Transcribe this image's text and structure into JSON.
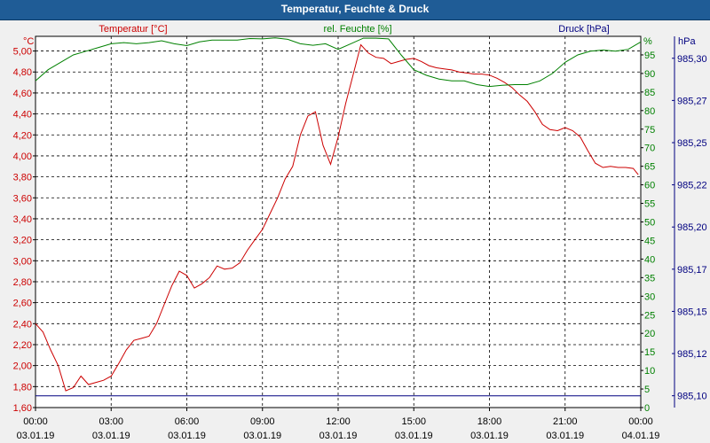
{
  "window": {
    "title": "Temperatur, Feuchte & Druck"
  },
  "colors": {
    "temperature": "#cc0000",
    "humidity": "#008000",
    "pressure": "#000080",
    "grid": "#000000",
    "plot_bg": "#ffffff"
  },
  "chart_data": {
    "type": "line",
    "title": "Temperatur, Feuchte & Druck",
    "grid": true,
    "x_ticks": [
      {
        "time": "00:00",
        "date": "03.01.19"
      },
      {
        "time": "03:00",
        "date": "03.01.19"
      },
      {
        "time": "06:00",
        "date": "03.01.19"
      },
      {
        "time": "09:00",
        "date": "03.01.19"
      },
      {
        "time": "12:00",
        "date": "03.01.19"
      },
      {
        "time": "15:00",
        "date": "03.01.19"
      },
      {
        "time": "18:00",
        "date": "03.01.19"
      },
      {
        "time": "21:00",
        "date": "03.01.19"
      },
      {
        "time": "00:00",
        "date": "04.01.19"
      }
    ],
    "axes": {
      "temperature": {
        "label": "Temperatur [°C]",
        "unit": "°C",
        "range": [
          1.6,
          5.14
        ],
        "ticks": [
          "1,60",
          "1,80",
          "2,00",
          "2,20",
          "2,40",
          "2,60",
          "2,80",
          "3,00",
          "3,20",
          "3,40",
          "3,60",
          "3,80",
          "4,00",
          "4,20",
          "4,40",
          "4,60",
          "4,80",
          "5,00"
        ],
        "tick_values": [
          1.6,
          1.8,
          2.0,
          2.2,
          2.4,
          2.6,
          2.8,
          3.0,
          3.2,
          3.4,
          3.6,
          3.8,
          4.0,
          4.2,
          4.4,
          4.6,
          4.8,
          5.0
        ]
      },
      "humidity": {
        "label": "rel. Feuchte [%]",
        "unit": "%",
        "range": [
          0,
          100
        ],
        "ticks": [
          "0",
          "5",
          "10",
          "15",
          "20",
          "25",
          "30",
          "35",
          "40",
          "45",
          "50",
          "55",
          "60",
          "65",
          "70",
          "75",
          "80",
          "85",
          "90",
          "95"
        ],
        "tick_values": [
          0,
          5,
          10,
          15,
          20,
          25,
          30,
          35,
          40,
          45,
          50,
          55,
          60,
          65,
          70,
          75,
          80,
          85,
          90,
          95
        ]
      },
      "pressure": {
        "label": "Druck [hPa]",
        "unit": "hPa",
        "range": [
          985.093,
          985.313
        ],
        "ticks": [
          "985,10",
          "985,12",
          "985,15",
          "985,17",
          "985,20",
          "985,22",
          "985,25",
          "985,27",
          "985,30"
        ],
        "tick_values": [
          985.1,
          985.125,
          985.15,
          985.175,
          985.2,
          985.225,
          985.25,
          985.275,
          985.3
        ]
      }
    },
    "series": [
      {
        "name": "Temperatur [°C]",
        "axis": "temperature",
        "x": [
          0,
          0.3,
          0.6,
          0.9,
          1.2,
          1.5,
          1.8,
          2.1,
          2.4,
          2.7,
          3.0,
          3.3,
          3.6,
          3.9,
          4.2,
          4.5,
          4.8,
          5.1,
          5.4,
          5.7,
          6.0,
          6.3,
          6.6,
          6.9,
          7.2,
          7.5,
          7.8,
          8.1,
          8.4,
          8.7,
          9.0,
          9.3,
          9.6,
          9.9,
          10.2,
          10.5,
          10.8,
          11.1,
          11.4,
          11.7,
          12.0,
          12.3,
          12.6,
          12.9,
          13.2,
          13.5,
          13.8,
          14.1,
          14.4,
          14.7,
          15.0,
          15.3,
          15.6,
          15.9,
          16.2,
          16.5,
          16.8,
          17.1,
          17.4,
          17.7,
          18.0,
          18.3,
          18.6,
          18.9,
          19.2,
          19.5,
          19.8,
          20.1,
          20.4,
          20.7,
          21.0,
          21.3,
          21.6,
          21.9,
          22.2,
          22.5,
          22.8,
          23.1,
          23.4,
          23.7,
          23.9
        ],
        "values": [
          2.4,
          2.32,
          2.15,
          2.0,
          1.76,
          1.79,
          1.9,
          1.82,
          1.84,
          1.86,
          1.9,
          2.02,
          2.15,
          2.24,
          2.26,
          2.28,
          2.4,
          2.58,
          2.76,
          2.9,
          2.86,
          2.74,
          2.78,
          2.84,
          2.95,
          2.92,
          2.93,
          2.98,
          3.1,
          3.2,
          3.3,
          3.45,
          3.6,
          3.78,
          3.9,
          4.2,
          4.38,
          4.42,
          4.1,
          3.92,
          4.18,
          4.5,
          4.78,
          5.06,
          4.98,
          4.94,
          4.93,
          4.88,
          4.9,
          4.92,
          4.93,
          4.9,
          4.86,
          4.84,
          4.83,
          4.82,
          4.8,
          4.79,
          4.78,
          4.78,
          4.77,
          4.74,
          4.7,
          4.65,
          4.58,
          4.52,
          4.42,
          4.3,
          4.25,
          4.24,
          4.27,
          4.24,
          4.18,
          4.05,
          3.93,
          3.89,
          3.9,
          3.89,
          3.89,
          3.88,
          3.82
        ]
      },
      {
        "name": "rel. Feuchte [%]",
        "axis": "humidity",
        "x": [
          0,
          0.5,
          1.0,
          1.5,
          2.0,
          2.5,
          3.0,
          3.5,
          4.0,
          4.5,
          5.0,
          5.5,
          6.0,
          6.5,
          7.0,
          7.5,
          8.0,
          8.5,
          9.0,
          9.5,
          10.0,
          10.5,
          11.0,
          11.5,
          12.0,
          12.5,
          13.0,
          13.5,
          14.0,
          14.5,
          15.0,
          15.5,
          16.0,
          16.5,
          17.0,
          17.5,
          18.0,
          18.5,
          19.0,
          19.5,
          20.0,
          20.5,
          21.0,
          21.5,
          22.0,
          22.5,
          23.0,
          23.5,
          24.0
        ],
        "values": [
          88,
          91,
          93,
          95,
          96,
          97,
          98,
          98.3,
          98,
          98.3,
          98.8,
          98,
          97.5,
          98.5,
          99,
          99,
          99,
          99.4,
          99.3,
          99.6,
          99.2,
          98,
          97.6,
          98,
          96.5,
          98,
          99.5,
          99.5,
          99.3,
          95,
          91,
          89.5,
          88.5,
          88,
          88,
          87,
          86.5,
          86.8,
          87,
          87,
          88,
          90,
          93,
          95,
          96,
          96.3,
          96,
          96.5,
          98.5
        ]
      },
      {
        "name": "Druck [hPa]",
        "axis": "pressure",
        "x": [
          0,
          24
        ],
        "values": [
          985.1,
          985.1
        ]
      }
    ]
  }
}
